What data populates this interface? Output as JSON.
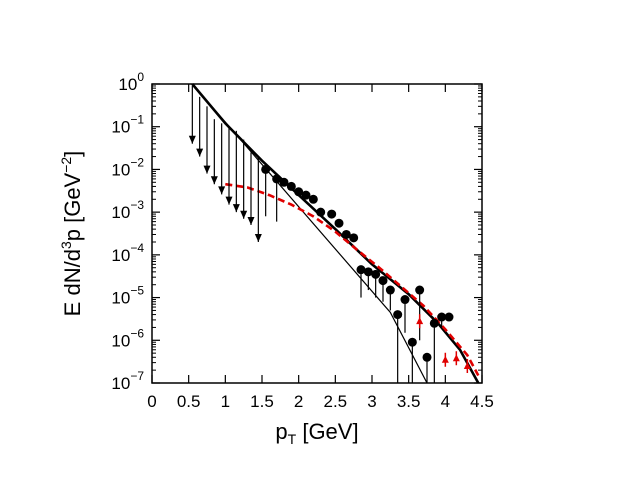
{
  "chart_data": {
    "type": "scatter",
    "title": "",
    "ylabel": {
      "parts": [
        {
          "t": "E dN/d",
          "s": "n"
        },
        {
          "t": "3",
          "s": "sup"
        },
        {
          "t": "p [GeV",
          "s": "n"
        },
        {
          "t": "−2",
          "s": "sup"
        },
        {
          "t": "]",
          "s": "n"
        }
      ]
    },
    "xlabel": {
      "parts": [
        {
          "t": "p",
          "s": "n"
        },
        {
          "t": "T",
          "s": "sub"
        },
        {
          "t": " [GeV]",
          "s": "n"
        }
      ]
    },
    "xlim": [
      0,
      4.5
    ],
    "ylog": true,
    "ylim": [
      1e-07,
      1
    ],
    "grid": false,
    "x_ticks": [
      {
        "v": 0,
        "label": "0"
      },
      {
        "v": 0.5,
        "label": "0.5"
      },
      {
        "v": 1,
        "label": "1"
      },
      {
        "v": 1.5,
        "label": "1.5"
      },
      {
        "v": 2,
        "label": "2"
      },
      {
        "v": 2.5,
        "label": "2.5"
      },
      {
        "v": 3,
        "label": "3"
      },
      {
        "v": 3.5,
        "label": "3.5"
      },
      {
        "v": 4,
        "label": "4"
      },
      {
        "v": 4.5,
        "label": "4.5"
      }
    ],
    "y_ticks": [
      {
        "v": 1,
        "base": "10",
        "exp": "0"
      },
      {
        "v": 0.1,
        "base": "10",
        "exp": "−1"
      },
      {
        "v": 0.01,
        "base": "10",
        "exp": "−2"
      },
      {
        "v": 0.001,
        "base": "10",
        "exp": "−3"
      },
      {
        "v": 0.0001,
        "base": "10",
        "exp": "−4"
      },
      {
        "v": 1e-05,
        "base": "10",
        "exp": "−5"
      },
      {
        "v": 1e-06,
        "base": "10",
        "exp": "−6"
      },
      {
        "v": 1e-07,
        "base": "10",
        "exp": "−7"
      }
    ],
    "upper_limits": [
      {
        "x": 0.55,
        "y": 0.9,
        "arrow_y": 0.04
      },
      {
        "x": 0.65,
        "y": 0.5,
        "arrow_y": 0.02
      },
      {
        "x": 0.75,
        "y": 0.3,
        "arrow_y": 0.008
      },
      {
        "x": 0.85,
        "y": 0.15,
        "arrow_y": 0.0045
      },
      {
        "x": 0.95,
        "y": 0.12,
        "arrow_y": 0.0026
      },
      {
        "x": 1.05,
        "y": 0.1,
        "arrow_y": 0.0015
      },
      {
        "x": 1.15,
        "y": 0.08,
        "arrow_y": 0.001
      },
      {
        "x": 1.25,
        "y": 0.05,
        "arrow_y": 0.0007
      },
      {
        "x": 1.35,
        "y": 0.025,
        "arrow_y": 0.0005
      },
      {
        "x": 1.45,
        "y": 0.02,
        "arrow_y": 0.0002
      }
    ],
    "data_points": [
      {
        "x": 1.55,
        "y": 0.01,
        "err_low": 0.0008
      },
      {
        "x": 1.7,
        "y": 0.006,
        "err_low": 0.0006
      },
      {
        "x": 1.8,
        "y": 0.005
      },
      {
        "x": 1.9,
        "y": 0.004
      },
      {
        "x": 2.0,
        "y": 0.003
      },
      {
        "x": 2.1,
        "y": 0.0025
      },
      {
        "x": 2.2,
        "y": 0.002
      },
      {
        "x": 2.3,
        "y": 0.001
      },
      {
        "x": 2.45,
        "y": 0.0009
      },
      {
        "x": 2.55,
        "y": 0.00055
      },
      {
        "x": 2.65,
        "y": 0.0003
      },
      {
        "x": 2.75,
        "y": 0.00025
      },
      {
        "x": 2.85,
        "y": 4.5e-05,
        "err_low": 1e-05
      },
      {
        "x": 2.95,
        "y": 4e-05,
        "err_low": 1.5e-05
      },
      {
        "x": 3.05,
        "y": 3.5e-05,
        "err_low": 1e-05
      },
      {
        "x": 3.15,
        "y": 2.5e-05,
        "err_low": 8e-06
      },
      {
        "x": 3.25,
        "y": 1.5e-05,
        "err_low": 5e-06
      },
      {
        "x": 3.35,
        "y": 4e-06,
        "err_low": 1e-07
      },
      {
        "x": 3.45,
        "y": 9e-06,
        "err_low": 1.5e-06
      },
      {
        "x": 3.55,
        "y": 9e-07,
        "err_low": 1e-07
      },
      {
        "x": 3.65,
        "y": 1.5e-05,
        "err_low": 1e-06
      },
      {
        "x": 3.75,
        "y": 4e-07,
        "err_low": 1e-07
      },
      {
        "x": 3.85,
        "y": 2.5e-06,
        "err_low": 1e-07
      },
      {
        "x": 3.95,
        "y": 3.5e-06,
        "err_low": 2e-06
      },
      {
        "x": 4.05,
        "y": 3.5e-06
      }
    ],
    "red_points": [
      {
        "x": 3.65,
        "y": 2.8e-06
      },
      {
        "x": 4.0,
        "y": 3.5e-07
      },
      {
        "x": 4.15,
        "y": 3.8e-07
      },
      {
        "x": 4.3,
        "y": 2.5e-07
      }
    ],
    "curves": [
      {
        "style": "thin-black",
        "points": [
          [
            0.55,
            1
          ],
          [
            3.25,
            4.5e-06
          ],
          [
            3.75,
            1e-07
          ]
        ]
      },
      {
        "style": "thick-black",
        "points": [
          [
            0.55,
            1
          ],
          [
            1.0,
            0.12
          ],
          [
            1.5,
            0.016
          ],
          [
            2.0,
            0.0025
          ],
          [
            2.5,
            0.0004
          ],
          [
            3.0,
            6e-05
          ],
          [
            3.5,
            1.2e-05
          ],
          [
            3.9,
            2.5e-06
          ],
          [
            4.2,
            6e-07
          ],
          [
            4.45,
            1e-07
          ]
        ]
      },
      {
        "style": "red-dashed",
        "points": [
          [
            1.0,
            0.0045
          ],
          [
            1.3,
            0.0038
          ],
          [
            1.6,
            0.0025
          ],
          [
            1.9,
            0.0015
          ],
          [
            2.2,
            0.0008
          ],
          [
            2.5,
            0.00035
          ],
          [
            2.8,
            0.00013
          ],
          [
            3.1,
            5e-05
          ],
          [
            3.4,
            1.8e-05
          ],
          [
            3.7,
            6.5e-06
          ],
          [
            4.0,
            1.8e-06
          ],
          [
            4.3,
            4.5e-07
          ],
          [
            4.45,
            1.5e-07
          ]
        ]
      }
    ]
  }
}
